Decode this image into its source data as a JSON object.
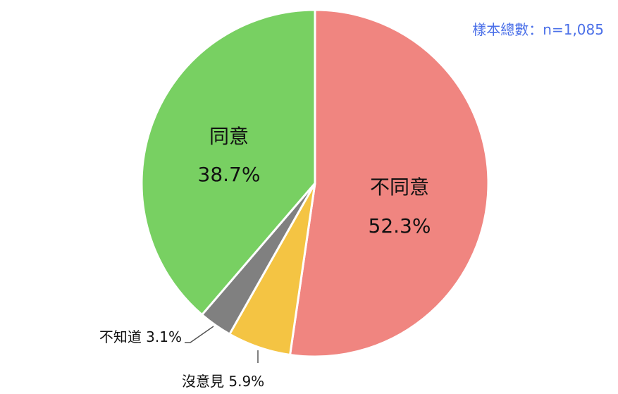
{
  "chart_data": {
    "type": "pie",
    "note": "樣本總數：n=1,085",
    "start": "top",
    "direction": "clockwise",
    "slices": [
      {
        "label": "不同意",
        "value": 52.3,
        "display": "52.3%",
        "color": "#f08580",
        "label_position": "inside"
      },
      {
        "label": "沒意見",
        "value": 5.9,
        "display": "沒意見 5.9%",
        "color": "#f4c443",
        "label_position": "outside"
      },
      {
        "label": "不知道",
        "value": 3.1,
        "display": "不知道 3.1%",
        "color": "#808080",
        "label_position": "outside"
      },
      {
        "label": "同意",
        "value": 38.7,
        "display": "38.7%",
        "color": "#78d062",
        "label_position": "inside"
      }
    ]
  }
}
